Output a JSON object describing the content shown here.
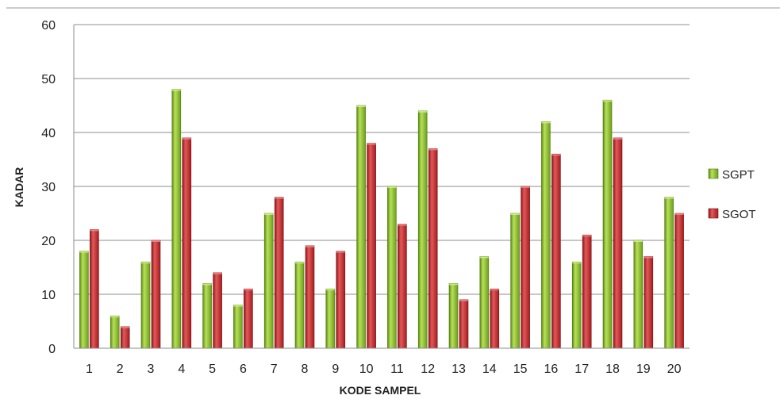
{
  "chart_data": {
    "type": "bar",
    "title": "",
    "xlabel": "KODE SAMPEL",
    "ylabel": "KADAR",
    "ylim": [
      0,
      60
    ],
    "yticks": [
      0,
      10,
      20,
      30,
      40,
      50,
      60
    ],
    "grid": true,
    "legend_position": "right",
    "categories": [
      "1",
      "2",
      "3",
      "4",
      "5",
      "6",
      "7",
      "8",
      "9",
      "10",
      "11",
      "12",
      "13",
      "14",
      "15",
      "16",
      "17",
      "18",
      "19",
      "20"
    ],
    "series": [
      {
        "name": "SGPT",
        "color": "#7fb22a",
        "values": [
          18,
          6,
          16,
          48,
          12,
          8,
          25,
          16,
          11,
          45,
          30,
          44,
          12,
          17,
          25,
          42,
          16,
          46,
          20,
          28
        ]
      },
      {
        "name": "SGOT",
        "color": "#c0282a",
        "values": [
          22,
          4,
          20,
          39,
          14,
          11,
          28,
          19,
          18,
          38,
          23,
          37,
          9,
          11,
          30,
          36,
          21,
          39,
          17,
          25
        ]
      }
    ]
  }
}
